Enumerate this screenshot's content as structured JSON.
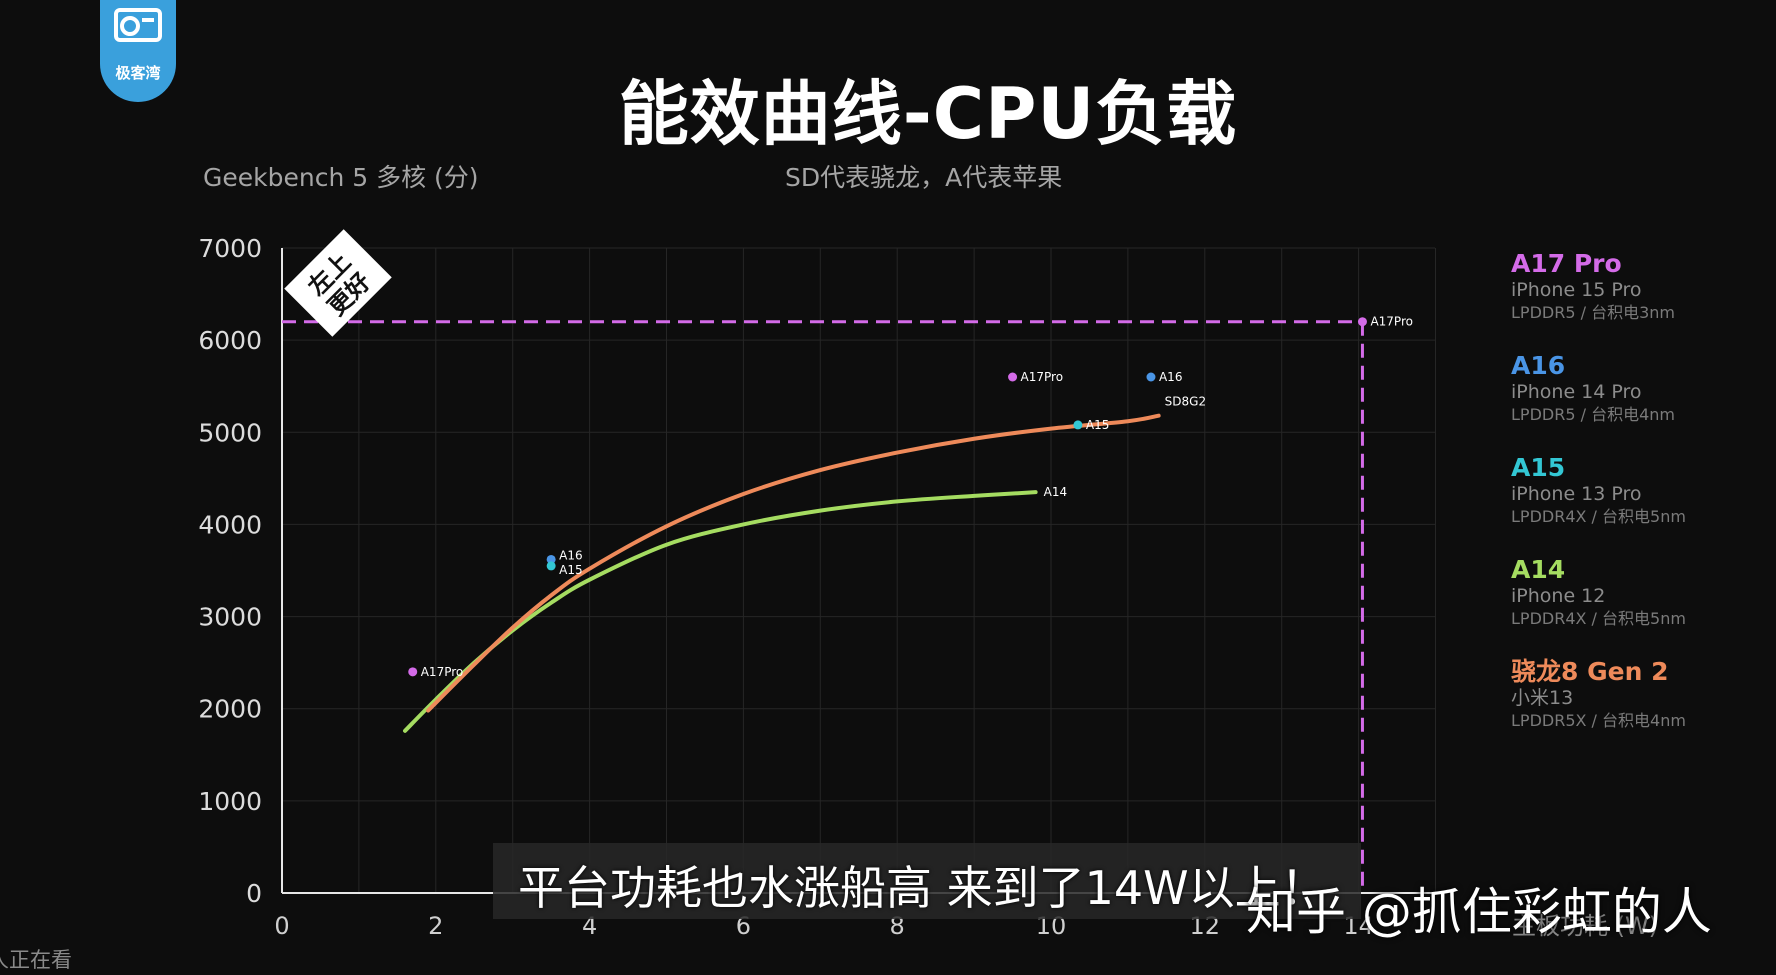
{
  "logo": {
    "text": "极客湾"
  },
  "badge": {
    "text_line1": "左上",
    "text_line2": "更好"
  },
  "overlay": {
    "caption": "平台功耗也水涨船高 来到了14W以上！",
    "watermark": "知乎 @抓住彩虹的人",
    "viewing": "人正在看"
  },
  "colors": {
    "a17pro": "#d46be8",
    "a16": "#4a95e6",
    "a15": "#33c7d4",
    "a14": "#a5dc61",
    "sd8g2": "#ee8a5a"
  },
  "chart_data": {
    "type": "line",
    "title": "能效曲线-CPU负载",
    "subtitle": "SD代表骁龙，A代表苹果",
    "ylabel": "Geekbench 5 多核 (分)",
    "xlabel": "主板功耗 (W)",
    "xlim": [
      0,
      15
    ],
    "ylim": [
      0,
      7000
    ],
    "xticks": [
      0,
      2,
      4,
      6,
      8,
      10,
      12,
      14
    ],
    "yticks": [
      0,
      1000,
      2000,
      3000,
      4000,
      5000,
      6000,
      7000
    ],
    "grid": true,
    "legend_position": "right",
    "series": [
      {
        "name": "A14",
        "color": "#a5dc61",
        "label": "A14",
        "points": [
          [
            1.6,
            1760
          ],
          [
            2.0,
            2100
          ],
          [
            2.5,
            2500
          ],
          [
            3.0,
            2850
          ],
          [
            3.5,
            3150
          ],
          [
            4.0,
            3400
          ],
          [
            5.0,
            3780
          ],
          [
            6.0,
            4000
          ],
          [
            7.0,
            4150
          ],
          [
            8.0,
            4250
          ],
          [
            9.0,
            4310
          ],
          [
            9.8,
            4350
          ]
        ]
      },
      {
        "name": "骁龙8 Gen 2",
        "color": "#ee8a5a",
        "label": "SD8G2",
        "points": [
          [
            1.9,
            1980
          ],
          [
            2.5,
            2480
          ],
          [
            3.0,
            2880
          ],
          [
            3.5,
            3230
          ],
          [
            4.0,
            3520
          ],
          [
            5.0,
            3980
          ],
          [
            6.0,
            4330
          ],
          [
            7.0,
            4590
          ],
          [
            8.0,
            4780
          ],
          [
            9.0,
            4930
          ],
          [
            10.0,
            5040
          ],
          [
            11.0,
            5120
          ],
          [
            11.4,
            5180
          ]
        ]
      }
    ],
    "points": [
      {
        "series": "A17 Pro",
        "label": "A17Pro",
        "x": 1.7,
        "y": 2400,
        "color": "#d46be8"
      },
      {
        "series": "A16",
        "label": "A16",
        "x": 3.5,
        "y": 3620,
        "color": "#4a95e6"
      },
      {
        "series": "A15",
        "label": "A15",
        "x": 3.5,
        "y": 3550,
        "color": "#33c7d4"
      },
      {
        "series": "A17 Pro",
        "label": "A17Pro",
        "x": 9.5,
        "y": 5600,
        "color": "#d46be8"
      },
      {
        "series": "A16",
        "label": "A16",
        "x": 11.3,
        "y": 5600,
        "color": "#4a95e6"
      },
      {
        "series": "A15",
        "label": "A15",
        "x": 10.35,
        "y": 5080,
        "color": "#33c7d4"
      },
      {
        "series": "A17 Pro",
        "label": "A17Pro",
        "x": 14.05,
        "y": 6200,
        "color": "#d46be8"
      }
    ],
    "reference_lines": {
      "x": 14.05,
      "y": 6200,
      "color": "#d46be8",
      "style": "dashed"
    },
    "legend": [
      {
        "name": "A17 Pro",
        "device": "iPhone 15 Pro",
        "spec": "LPDDR5 / 台积电3nm",
        "color": "#d46be8"
      },
      {
        "name": "A16",
        "device": "iPhone 14 Pro",
        "spec": "LPDDR5 / 台积电4nm",
        "color": "#4a95e6"
      },
      {
        "name": "A15",
        "device": "iPhone 13 Pro",
        "spec": "LPDDR4X / 台积电5nm",
        "color": "#33c7d4"
      },
      {
        "name": "A14",
        "device": "iPhone 12",
        "spec": "LPDDR4X / 台积电5nm",
        "color": "#a5dc61"
      },
      {
        "name": "骁龙8 Gen 2",
        "device": "小米13",
        "spec": "LPDDR5X / 台积电4nm",
        "color": "#ee8a5a"
      }
    ]
  }
}
